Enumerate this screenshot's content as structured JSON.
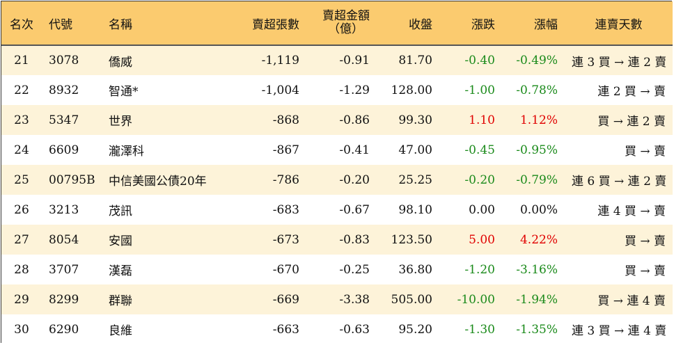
{
  "headers": {
    "rank": "名次",
    "code": "代號",
    "name": "名稱",
    "net_sell_lots": "賣超張數",
    "net_sell_amount_line1": "賣超金額",
    "net_sell_amount_line2": "（億）",
    "close": "收盤",
    "change": "漲跌",
    "change_pct": "漲幅",
    "consecutive_days": "連賣天數"
  },
  "rows": [
    {
      "rank": "21",
      "code": "3078",
      "name": "僑威",
      "lots": "-1,119",
      "amount": "-0.91",
      "close": "81.70",
      "change": "-0.40",
      "pct": "-0.49%",
      "trend": "neg",
      "days": "連 3 買 → 連 2 賣"
    },
    {
      "rank": "22",
      "code": "8932",
      "name": "智通*",
      "lots": "-1,004",
      "amount": "-1.29",
      "close": "128.00",
      "change": "-1.00",
      "pct": "-0.78%",
      "trend": "neg",
      "days": "連 2 買 → 賣"
    },
    {
      "rank": "23",
      "code": "5347",
      "name": "世界",
      "lots": "-868",
      "amount": "-0.86",
      "close": "99.30",
      "change": "1.10",
      "pct": "1.12%",
      "trend": "pos",
      "days": "買 → 連 2 賣"
    },
    {
      "rank": "24",
      "code": "6609",
      "name": "瀧澤科",
      "lots": "-867",
      "amount": "-0.41",
      "close": "47.00",
      "change": "-0.45",
      "pct": "-0.95%",
      "trend": "neg",
      "days": "買 → 賣"
    },
    {
      "rank": "25",
      "code": "00795B",
      "name": "中信美國公債20年",
      "lots": "-786",
      "amount": "-0.20",
      "close": "25.25",
      "change": "-0.20",
      "pct": "-0.79%",
      "trend": "neg",
      "days": "連 6 買 → 連 2 賣"
    },
    {
      "rank": "26",
      "code": "3213",
      "name": "茂訊",
      "lots": "-683",
      "amount": "-0.67",
      "close": "98.10",
      "change": "0.00",
      "pct": "0.00%",
      "trend": "zero",
      "days": "連 4 買 → 賣"
    },
    {
      "rank": "27",
      "code": "8054",
      "name": "安國",
      "lots": "-673",
      "amount": "-0.83",
      "close": "123.50",
      "change": "5.00",
      "pct": "4.22%",
      "trend": "pos",
      "days": "買 → 賣"
    },
    {
      "rank": "28",
      "code": "3707",
      "name": "漢磊",
      "lots": "-670",
      "amount": "-0.25",
      "close": "36.80",
      "change": "-1.20",
      "pct": "-3.16%",
      "trend": "neg",
      "days": "買 → 賣"
    },
    {
      "rank": "29",
      "code": "8299",
      "name": "群聯",
      "lots": "-669",
      "amount": "-3.38",
      "close": "505.00",
      "change": "-10.00",
      "pct": "-1.94%",
      "trend": "neg",
      "days": "買 → 連 4 賣"
    },
    {
      "rank": "30",
      "code": "6290",
      "name": "良維",
      "lots": "-663",
      "amount": "-0.63",
      "close": "95.20",
      "change": "-1.30",
      "pct": "-1.35%",
      "trend": "neg",
      "days": "連 3 買 → 連 4 賣"
    }
  ],
  "colors": {
    "header_bg": "#fbcb6f",
    "odd_row": "#fdf3d9",
    "up": "#e00000",
    "down": "#1a8a1a"
  }
}
